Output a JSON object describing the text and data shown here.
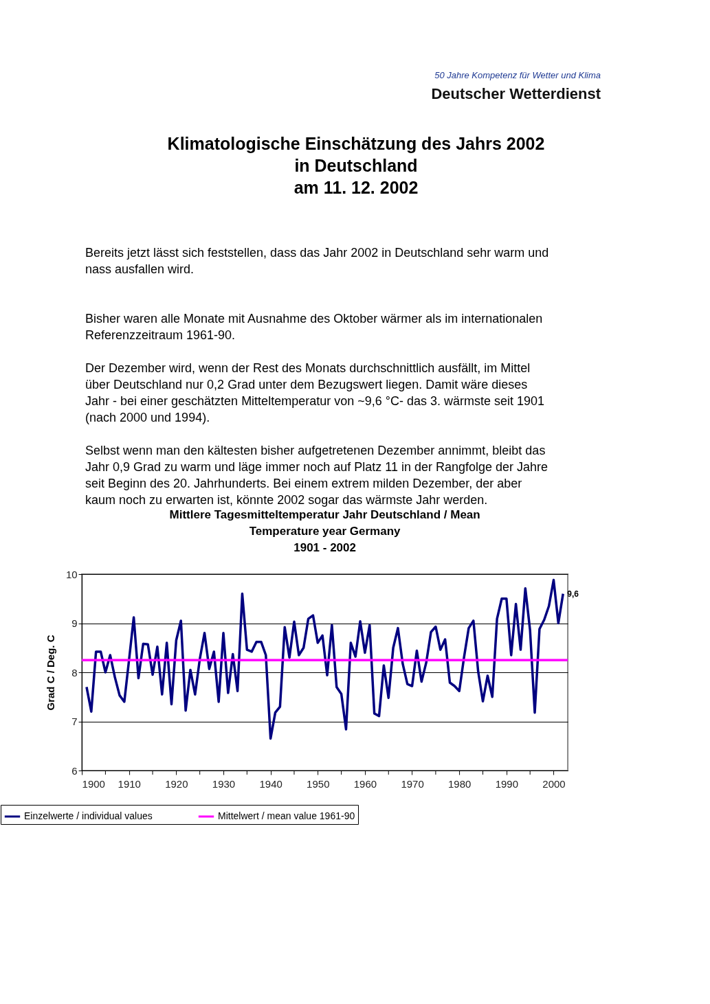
{
  "chart_data": {
    "type": "line",
    "title": "Mittlere Tagesmitteltemperatur Jahr  Deutschland / Mean\nTemperature year  Germany\n1901 - 2002",
    "ylabel": "Grad C / Deg. C",
    "x": [
      1901,
      1902,
      1903,
      1904,
      1905,
      1906,
      1907,
      1908,
      1909,
      1910,
      1911,
      1912,
      1913,
      1914,
      1915,
      1916,
      1917,
      1918,
      1919,
      1920,
      1921,
      1922,
      1923,
      1924,
      1925,
      1926,
      1927,
      1928,
      1929,
      1930,
      1931,
      1932,
      1933,
      1934,
      1935,
      1936,
      1937,
      1938,
      1939,
      1940,
      1941,
      1942,
      1943,
      1944,
      1945,
      1946,
      1947,
      1948,
      1949,
      1950,
      1951,
      1952,
      1953,
      1954,
      1955,
      1956,
      1957,
      1958,
      1959,
      1960,
      1961,
      1962,
      1963,
      1964,
      1965,
      1966,
      1967,
      1968,
      1969,
      1970,
      1971,
      1972,
      1973,
      1974,
      1975,
      1976,
      1977,
      1978,
      1979,
      1980,
      1981,
      1982,
      1983,
      1984,
      1985,
      1986,
      1987,
      1988,
      1989,
      1990,
      1991,
      1992,
      1993,
      1994,
      1995,
      1996,
      1997,
      1998,
      1999,
      2000,
      2001,
      2002
    ],
    "series": [
      {
        "name": "Einzelwerte / individual values",
        "color": "#000080",
        "values": [
          7.7,
          7.2,
          8.42,
          8.42,
          8.0,
          8.35,
          7.9,
          7.53,
          7.4,
          8.25,
          9.12,
          7.88,
          8.58,
          8.57,
          7.95,
          8.52,
          7.55,
          8.6,
          7.35,
          8.65,
          9.05,
          7.22,
          8.05,
          7.55,
          8.27,
          8.8,
          8.07,
          8.42,
          7.4,
          8.8,
          7.58,
          8.37,
          7.62,
          9.6,
          8.46,
          8.42,
          8.62,
          8.62,
          8.35,
          6.65,
          7.18,
          7.3,
          8.92,
          8.3,
          9.03,
          8.35,
          8.5,
          9.09,
          9.16,
          8.6,
          8.75,
          7.94,
          8.96,
          7.7,
          7.56,
          6.84,
          8.6,
          8.32,
          9.04,
          8.4,
          8.96,
          7.16,
          7.11,
          8.14,
          7.48,
          8.5,
          8.9,
          8.18,
          7.76,
          7.72,
          8.44,
          7.81,
          8.2,
          8.82,
          8.93,
          8.46,
          8.67,
          7.79,
          7.72,
          7.62,
          8.3,
          8.9,
          9.05,
          8.02,
          7.41,
          7.93,
          7.5,
          9.09,
          9.5,
          9.5,
          8.35,
          9.39,
          8.46,
          9.71,
          8.86,
          7.18,
          8.88,
          9.07,
          9.35,
          9.88,
          9.0,
          9.6
        ]
      }
    ],
    "ref_lines": [
      {
        "axis": "y",
        "value": 8.25,
        "label": "Mittelwert / mean value 1961-90",
        "color": "#ff00ff"
      }
    ],
    "xlim": [
      1900,
      2003
    ],
    "xticks": [
      1900,
      {
        "value": 1905,
        "label": null
      },
      1910,
      {
        "value": 1915,
        "label": null
      },
      1920,
      {
        "value": 1925,
        "label": null
      },
      1930,
      {
        "value": 1935,
        "label": null
      },
      1940,
      {
        "value": 1945,
        "label": null
      },
      1950,
      {
        "value": 1955,
        "label": null
      },
      1960,
      {
        "value": 1965,
        "label": null
      },
      1970,
      {
        "value": 1975,
        "label": null
      },
      1980,
      {
        "value": 1985,
        "label": null
      },
      1990,
      {
        "value": 1995,
        "label": null
      },
      2000
    ],
    "ylim": [
      6,
      10
    ],
    "yticks": [
      6,
      7,
      8,
      9,
      10
    ],
    "grid": "y",
    "legend": "bottom",
    "marker": "none",
    "line_style": "solid",
    "annotations": [
      "50 Jahre Kompetenz für Wetter und Klima",
      "Deutscher Wetterdienst",
      "Klimatologische Einschätzung des Jahrs 2002\nin Deutschland\nam 11. 12. 2002",
      "Bereits jetzt lässt sich feststellen, dass das Jahr 2002 in Deutschland sehr warm und\nnass ausfallen wird.",
      "Bisher waren alle Monate mit Ausnahme des Oktober wärmer als im internationalen\nReferenzzeitraum 1961-90.",
      "Der Dezember wird, wenn der Rest des Monats durchschnittlich ausfällt, im Mittel\nüber Deutschland nur 0,2 Grad unter dem Bezugswert liegen. Damit wäre dieses\nJahr - bei einer geschätzten Mitteltemperatur von ~9,6 °C- das 3. wärmste seit 1901\n(nach 2000 und 1994).",
      "Selbst wenn man den kältesten bisher aufgetretenen Dezember annimmt, bleibt das\nJahr 0,9 Grad zu warm und läge immer noch auf Platz 11 in der Rangfolge der Jahre\nseit Beginn des 20. Jahrhunderts. Bei einem extrem milden Dezember, der aber\nkaum noch zu erwarten ist, könnte 2002 sogar das wärmste Jahr werden.",
      {
        "text": "9,6",
        "x": 2002,
        "y": 9.6
      }
    ]
  }
}
